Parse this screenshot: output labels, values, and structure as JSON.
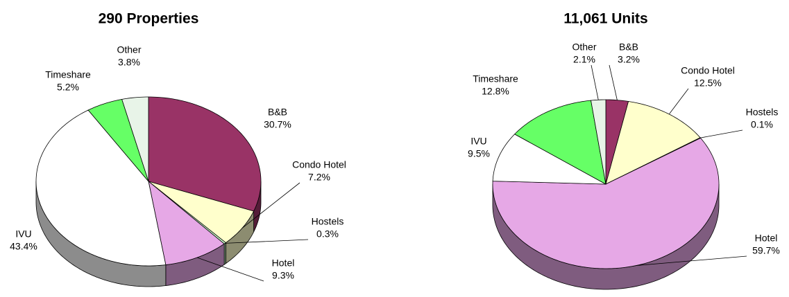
{
  "chart_data": [
    {
      "type": "pie",
      "title": "290 Properties",
      "categories": [
        "B&B",
        "Condo Hotel",
        "Hostels",
        "Hotel",
        "IVU",
        "Timeshare",
        "Other"
      ],
      "values": [
        30.7,
        7.2,
        0.3,
        9.3,
        43.4,
        5.2,
        3.8
      ],
      "value_labels": [
        "30.7%",
        "7.2%",
        "0.3%",
        "9.3%",
        "43.4%",
        "5.2%",
        "3.8%"
      ],
      "colors": [
        "#993366",
        "#ffffcc",
        "#ccffcc",
        "#e6a8e6",
        "#ffffff",
        "#66ff66",
        "#e8f4e8"
      ]
    },
    {
      "type": "pie",
      "title": "11,061 Units",
      "categories": [
        "B&B",
        "Condo Hotel",
        "Hostels",
        "Hotel",
        "IVU",
        "Timeshare",
        "Other"
      ],
      "values": [
        3.2,
        12.5,
        0.1,
        59.7,
        9.5,
        12.8,
        2.1
      ],
      "value_labels": [
        "3.2%",
        "12.5%",
        "0.1%",
        "59.7%",
        "9.5%",
        "12.8%",
        "2.1%"
      ],
      "colors": [
        "#993366",
        "#ffffcc",
        "#ccffcc",
        "#e6a8e6",
        "#ffffff",
        "#66ff66",
        "#e8f4e8"
      ]
    }
  ]
}
